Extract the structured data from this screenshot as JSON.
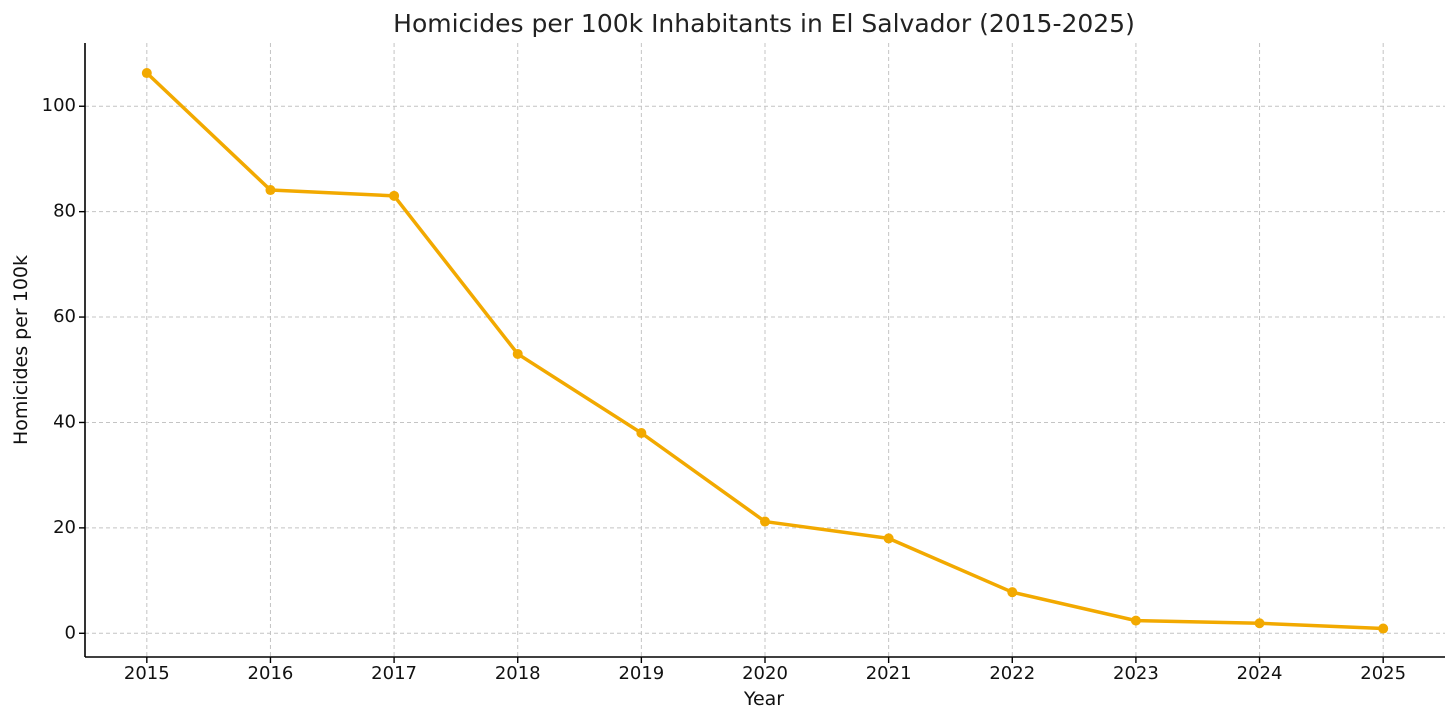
{
  "chart_data": {
    "type": "line",
    "title": "Homicides per 100k Inhabitants in El Salvador (2015-2025)",
    "xlabel": "Year",
    "ylabel": "Homicides per 100k",
    "x": [
      2015,
      2016,
      2017,
      2018,
      2019,
      2020,
      2021,
      2022,
      2023,
      2024,
      2025
    ],
    "x_tick_labels": [
      "2015",
      "2016",
      "2017",
      "2018",
      "2019",
      "2020",
      "2021",
      "2022",
      "2023",
      "2024",
      "2025"
    ],
    "y_ticks": [
      0,
      20,
      40,
      60,
      80,
      100
    ],
    "y_tick_labels": [
      "0",
      "20",
      "40",
      "60",
      "80",
      "100"
    ],
    "series": [
      {
        "values": [
          106.3,
          84.1,
          83.0,
          53.0,
          38.0,
          21.2,
          18.0,
          7.8,
          2.4,
          1.9,
          0.9
        ],
        "color": "#f2a900"
      }
    ],
    "xlim": [
      2014.5,
      2025.5
    ],
    "ylim": [
      -4.5,
      112
    ],
    "grid": true,
    "legend": "none"
  }
}
